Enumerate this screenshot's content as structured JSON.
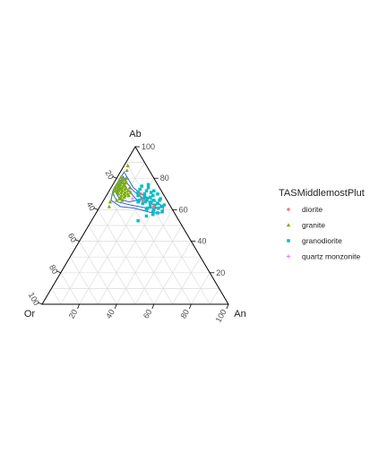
{
  "chart_data": {
    "type": "ternary-scatter",
    "axes": {
      "top": "Ab",
      "left": "Or",
      "right": "An"
    },
    "axis_ticks": [
      20,
      40,
      60,
      80,
      100
    ],
    "grid": true,
    "legend": {
      "title": "TASMiddlemostPlut",
      "placement": "right",
      "entries": [
        {
          "name": "diorite",
          "color": "#F8766D",
          "symbol": "circle"
        },
        {
          "name": "granite",
          "color": "#7CAE00",
          "symbol": "triangle"
        },
        {
          "name": "granodiorite",
          "color": "#00BFC4",
          "symbol": "square"
        },
        {
          "name": "quartz monzonite",
          "color": "#C77CFF",
          "symbol": "plus"
        }
      ]
    },
    "density_contour_color": "#3366CC",
    "series": [
      {
        "name": "granite",
        "points": [
          {
            "Ab": 79,
            "Or": 19,
            "An": 2
          },
          {
            "Ab": 77,
            "Or": 20,
            "An": 3
          },
          {
            "Ab": 78,
            "Or": 18,
            "An": 4
          },
          {
            "Ab": 75,
            "Or": 22,
            "An": 3
          },
          {
            "Ab": 76,
            "Or": 20,
            "An": 4
          },
          {
            "Ab": 74,
            "Or": 21,
            "An": 5
          },
          {
            "Ab": 73,
            "Or": 22,
            "An": 5
          },
          {
            "Ab": 75,
            "Or": 19,
            "An": 6
          },
          {
            "Ab": 72,
            "Or": 23,
            "An": 5
          },
          {
            "Ab": 74,
            "Or": 20,
            "An": 6
          },
          {
            "Ab": 71,
            "Or": 22,
            "An": 7
          },
          {
            "Ab": 73,
            "Or": 19,
            "An": 8
          },
          {
            "Ab": 70,
            "Or": 24,
            "An": 6
          },
          {
            "Ab": 72,
            "Or": 21,
            "An": 7
          },
          {
            "Ab": 71,
            "Or": 20,
            "An": 9
          },
          {
            "Ab": 69,
            "Or": 23,
            "An": 8
          },
          {
            "Ab": 70,
            "Or": 21,
            "An": 9
          },
          {
            "Ab": 68,
            "Or": 24,
            "An": 8
          },
          {
            "Ab": 73,
            "Or": 21,
            "An": 6
          },
          {
            "Ab": 69,
            "Or": 21,
            "An": 10
          },
          {
            "Ab": 76,
            "Or": 18,
            "An": 6
          },
          {
            "Ab": 77,
            "Or": 17,
            "An": 6
          },
          {
            "Ab": 74,
            "Or": 18,
            "An": 8
          },
          {
            "Ab": 72,
            "Or": 18,
            "An": 10
          },
          {
            "Ab": 70,
            "Or": 19,
            "An": 11
          },
          {
            "Ab": 67,
            "Or": 25,
            "An": 8
          },
          {
            "Ab": 71,
            "Or": 24,
            "An": 5
          },
          {
            "Ab": 78,
            "Or": 16,
            "An": 6
          },
          {
            "Ab": 75,
            "Or": 21,
            "An": 4
          },
          {
            "Ab": 73,
            "Or": 23,
            "An": 4
          },
          {
            "Ab": 68,
            "Or": 22,
            "An": 10
          },
          {
            "Ab": 66,
            "Or": 24,
            "An": 10
          },
          {
            "Ab": 81,
            "Or": 17,
            "An": 2
          },
          {
            "Ab": 80,
            "Or": 15,
            "An": 5
          },
          {
            "Ab": 85,
            "Or": 12,
            "An": 3
          },
          {
            "Ab": 88,
            "Or": 10,
            "An": 2
          },
          {
            "Ab": 62,
            "Or": 33,
            "An": 5
          },
          {
            "Ab": 65,
            "Or": 31,
            "An": 4
          },
          {
            "Ab": 74,
            "Or": 24,
            "An": 2
          },
          {
            "Ab": 70,
            "Or": 27,
            "An": 3
          },
          {
            "Ab": 76,
            "Or": 22,
            "An": 2
          },
          {
            "Ab": 72,
            "Or": 25,
            "An": 3
          },
          {
            "Ab": 66,
            "Or": 27,
            "An": 7
          },
          {
            "Ab": 71,
            "Or": 17,
            "An": 12
          },
          {
            "Ab": 69,
            "Or": 19,
            "An": 12
          },
          {
            "Ab": 77,
            "Or": 19,
            "An": 4
          },
          {
            "Ab": 79,
            "Or": 17,
            "An": 4
          },
          {
            "Ab": 74,
            "Or": 16,
            "An": 10
          }
        ]
      },
      {
        "name": "granodiorite",
        "points": [
          {
            "Ab": 70,
            "Or": 10,
            "An": 20
          },
          {
            "Ab": 67,
            "Or": 10,
            "An": 23
          },
          {
            "Ab": 68,
            "Or": 8,
            "An": 24
          },
          {
            "Ab": 65,
            "Or": 9,
            "An": 26
          },
          {
            "Ab": 66,
            "Or": 7,
            "An": 27
          },
          {
            "Ab": 63,
            "Or": 8,
            "An": 29
          },
          {
            "Ab": 64,
            "Or": 6,
            "An": 30
          },
          {
            "Ab": 61,
            "Or": 7,
            "An": 32
          },
          {
            "Ab": 69,
            "Or": 6,
            "An": 25
          },
          {
            "Ab": 72,
            "Or": 8,
            "An": 20
          },
          {
            "Ab": 71,
            "Or": 6,
            "An": 23
          },
          {
            "Ab": 60,
            "Or": 10,
            "An": 30
          },
          {
            "Ab": 62,
            "Or": 11,
            "An": 27
          },
          {
            "Ab": 67,
            "Or": 13,
            "An": 20
          },
          {
            "Ab": 65,
            "Or": 12,
            "An": 23
          },
          {
            "Ab": 73,
            "Or": 11,
            "An": 16
          },
          {
            "Ab": 69,
            "Or": 14,
            "An": 17
          },
          {
            "Ab": 64,
            "Or": 14,
            "An": 22
          },
          {
            "Ab": 58,
            "Or": 9,
            "An": 33
          },
          {
            "Ab": 62,
            "Or": 5,
            "An": 33
          },
          {
            "Ab": 66,
            "Or": 4,
            "An": 30
          },
          {
            "Ab": 70,
            "Or": 3,
            "An": 27
          },
          {
            "Ab": 74,
            "Or": 6,
            "An": 20
          },
          {
            "Ab": 72,
            "Or": 4,
            "An": 24
          },
          {
            "Ab": 56,
            "Or": 16,
            "An": 28
          },
          {
            "Ab": 71,
            "Or": 13,
            "An": 16
          },
          {
            "Ab": 68,
            "Or": 11,
            "An": 21
          },
          {
            "Ab": 64,
            "Or": 10,
            "An": 26
          },
          {
            "Ab": 59,
            "Or": 6,
            "An": 35
          },
          {
            "Ab": 61,
            "Or": 13,
            "An": 26
          },
          {
            "Ab": 57,
            "Or": 12,
            "An": 31
          },
          {
            "Ab": 75,
            "Or": 9,
            "An": 16
          },
          {
            "Ab": 53,
            "Or": 22,
            "An": 25
          },
          {
            "Ab": 59,
            "Or": 11,
            "An": 30
          },
          {
            "Ab": 66,
            "Or": 15,
            "An": 19
          },
          {
            "Ab": 63,
            "Or": 3,
            "An": 34
          },
          {
            "Ab": 76,
            "Or": 5,
            "An": 19
          },
          {
            "Ab": 67,
            "Or": 3,
            "An": 30
          },
          {
            "Ab": 65,
            "Or": 16,
            "An": 19
          },
          {
            "Ab": 60,
            "Or": 14,
            "An": 26
          }
        ]
      },
      {
        "name": "diorite",
        "points": [
          {
            "Ab": 66,
            "Or": 13,
            "An": 21
          },
          {
            "Ab": 62,
            "Or": 9,
            "An": 29
          },
          {
            "Ab": 70,
            "Or": 12,
            "An": 18
          }
        ]
      },
      {
        "name": "quartz monzonite",
        "points": [
          {
            "Ab": 72,
            "Or": 17,
            "An": 11
          },
          {
            "Ab": 67,
            "Or": 18,
            "An": 15
          }
        ]
      }
    ],
    "density_contours": [
      [
        {
          "Ab": 84,
          "Or": 14,
          "An": 2
        },
        {
          "Ab": 80,
          "Or": 14,
          "An": 6
        },
        {
          "Ab": 74,
          "Or": 14,
          "An": 12
        },
        {
          "Ab": 69,
          "Or": 11,
          "An": 20
        },
        {
          "Ab": 66,
          "Or": 7,
          "An": 27
        },
        {
          "Ab": 62,
          "Or": 4,
          "An": 34
        },
        {
          "Ab": 58,
          "Or": 6,
          "An": 36
        },
        {
          "Ab": 58,
          "Or": 12,
          "An": 30
        },
        {
          "Ab": 61,
          "Or": 20,
          "An": 19
        },
        {
          "Ab": 62,
          "Or": 27,
          "An": 11
        },
        {
          "Ab": 66,
          "Or": 30,
          "An": 4
        },
        {
          "Ab": 72,
          "Or": 26,
          "An": 2
        },
        {
          "Ab": 78,
          "Or": 20,
          "An": 2
        },
        {
          "Ab": 84,
          "Or": 14,
          "An": 2
        }
      ],
      [
        {
          "Ab": 81,
          "Or": 16,
          "An": 3
        },
        {
          "Ab": 77,
          "Or": 16,
          "An": 7
        },
        {
          "Ab": 72,
          "Or": 15,
          "An": 13
        },
        {
          "Ab": 67,
          "Or": 12,
          "An": 21
        },
        {
          "Ab": 64,
          "Or": 9,
          "An": 27
        },
        {
          "Ab": 61,
          "Or": 8,
          "An": 31
        },
        {
          "Ab": 61,
          "Or": 13,
          "An": 26
        },
        {
          "Ab": 63,
          "Or": 21,
          "An": 16
        },
        {
          "Ab": 65,
          "Or": 27,
          "An": 8
        },
        {
          "Ab": 70,
          "Or": 27,
          "An": 3
        },
        {
          "Ab": 76,
          "Or": 21,
          "An": 3
        },
        {
          "Ab": 81,
          "Or": 16,
          "An": 3
        }
      ],
      [
        {
          "Ab": 78,
          "Or": 18,
          "An": 4
        },
        {
          "Ab": 74,
          "Or": 18,
          "An": 8
        },
        {
          "Ab": 70,
          "Or": 17,
          "An": 13
        },
        {
          "Ab": 66,
          "Or": 16,
          "An": 18
        },
        {
          "Ab": 65,
          "Or": 21,
          "An": 14
        },
        {
          "Ab": 67,
          "Or": 25,
          "An": 8
        },
        {
          "Ab": 71,
          "Or": 25,
          "An": 4
        },
        {
          "Ab": 75,
          "Or": 21,
          "An": 4
        },
        {
          "Ab": 78,
          "Or": 18,
          "An": 4
        }
      ]
    ]
  }
}
